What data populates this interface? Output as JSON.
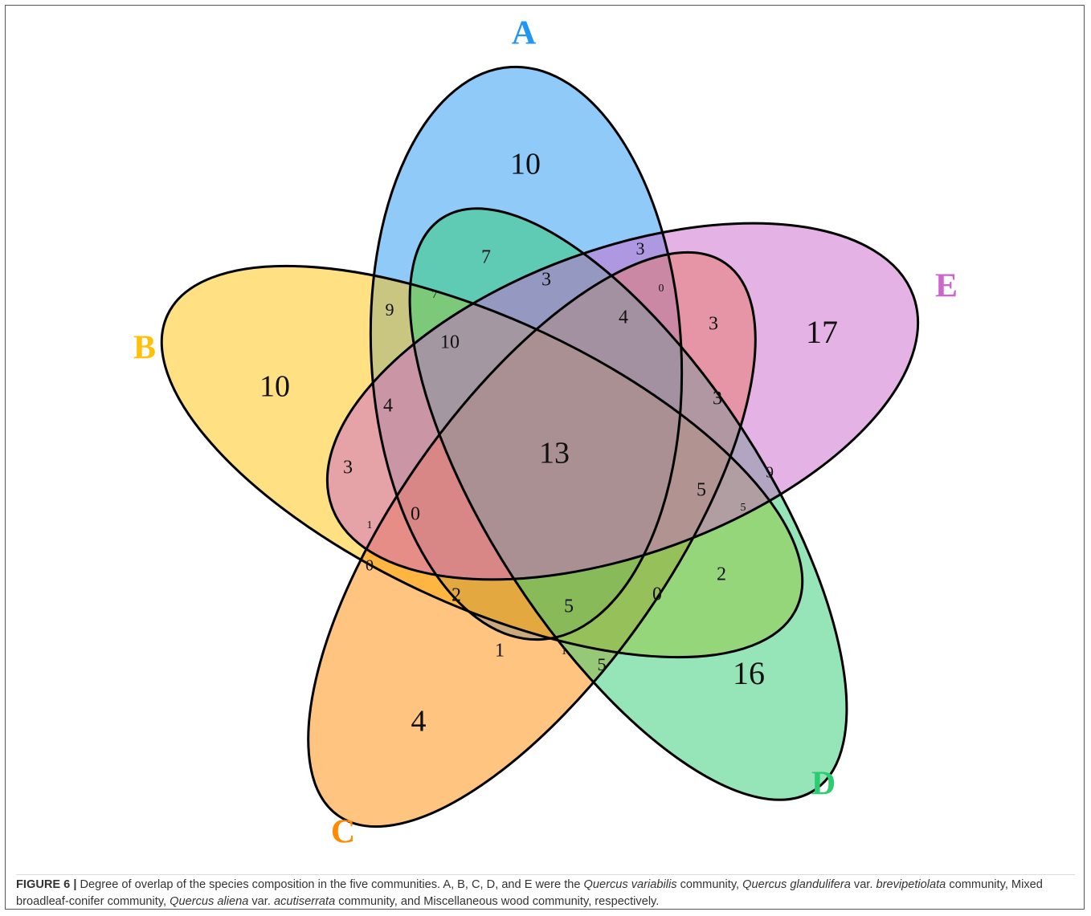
{
  "sets": [
    {
      "name": "A",
      "color": "#2196f3"
    },
    {
      "name": "B",
      "color": "#ffc107"
    },
    {
      "name": "C",
      "color": "#ff8a00"
    },
    {
      "name": "D",
      "color": "#2ecc71"
    },
    {
      "name": "E",
      "color": "#cc66cc"
    }
  ],
  "regions": [
    10,
    7,
    3,
    3,
    9,
    7,
    0,
    4,
    3,
    17,
    10,
    10,
    4,
    3,
    13,
    3,
    9,
    5,
    5,
    1,
    0,
    0,
    2,
    2,
    5,
    0,
    1,
    1,
    5,
    16,
    4
  ],
  "caption": {
    "label": "FIGURE 6 |",
    "segments": [
      {
        "text": " Degree of overlap of the species composition in the five communities. A, B, C, D, and E were the ",
        "italic": false
      },
      {
        "text": "Quercus variabilis",
        "italic": true
      },
      {
        "text": " community, ",
        "italic": false
      },
      {
        "text": "Quercus glandulifera",
        "italic": true
      },
      {
        "text": " var. ",
        "italic": false
      },
      {
        "text": "brevipetiolata",
        "italic": true
      },
      {
        "text": " community, Mixed broadleaf-conifer community, ",
        "italic": false
      },
      {
        "text": "Quercus aliena",
        "italic": true
      },
      {
        "text": " var. ",
        "italic": false
      },
      {
        "text": "acutiserrata",
        "italic": true
      },
      {
        "text": " community, and Miscellaneous wood community, respectively.",
        "italic": false
      }
    ]
  }
}
